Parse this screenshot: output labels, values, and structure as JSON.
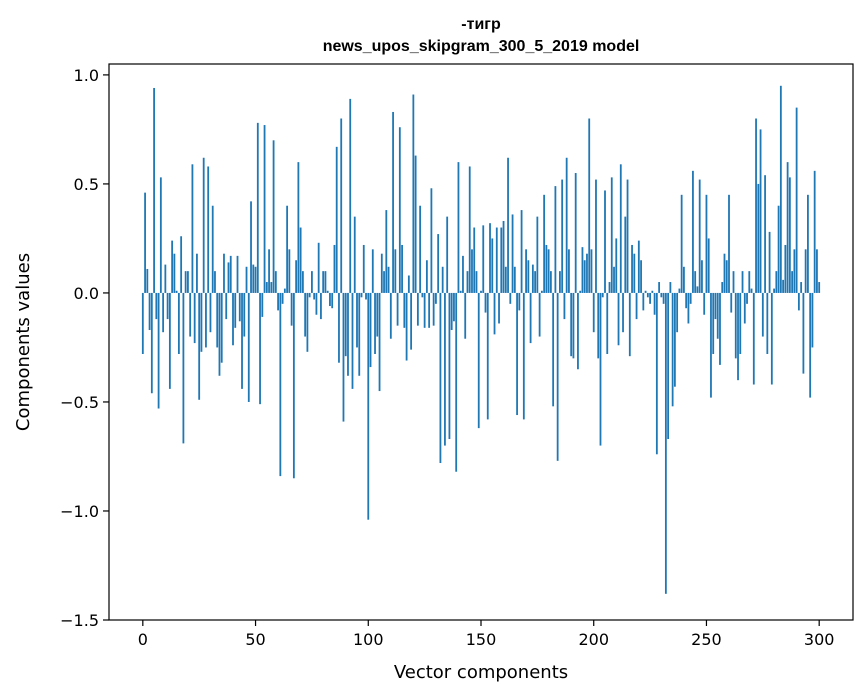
{
  "chart_data": {
    "type": "bar",
    "title": "-тигр",
    "subtitle": "news_upos_skipgram_300_5_2019 model",
    "xlabel": "Vector components",
    "ylabel": "Components values",
    "xlim": [
      -15,
      315
    ],
    "ylim": [
      -1.5,
      1.05
    ],
    "xticks": [
      0,
      50,
      100,
      150,
      200,
      250,
      300
    ],
    "yticks": [
      -1.5,
      -1.0,
      -0.5,
      0.0,
      0.5,
      1.0
    ],
    "xtick_labels": [
      "0",
      "50",
      "100",
      "150",
      "200",
      "250",
      "300"
    ],
    "ytick_labels": [
      "−1.5",
      "−1.0",
      "−0.5",
      "0.0",
      "0.5",
      "1.0"
    ],
    "grid": false,
    "bar_color": "#1f77b4",
    "series": [
      {
        "values": [
          -0.28,
          0.46,
          0.11,
          -0.17,
          -0.46,
          0.94,
          -0.12,
          -0.53,
          0.53,
          -0.18,
          0.13,
          -0.12,
          -0.44,
          0.24,
          0.18,
          0.01,
          -0.28,
          0.26,
          -0.69,
          0.1,
          0.1,
          -0.2,
          0.59,
          -0.23,
          0.18,
          -0.49,
          -0.27,
          0.62,
          -0.25,
          0.58,
          -0.18,
          0.4,
          0.1,
          -0.25,
          -0.38,
          -0.32,
          0.18,
          -0.12,
          0.14,
          0.17,
          -0.24,
          -0.16,
          0.17,
          -0.13,
          -0.44,
          -0.2,
          0.12,
          -0.5,
          0.42,
          0.13,
          0.12,
          0.78,
          -0.51,
          -0.11,
          0.77,
          0.05,
          0.2,
          0.05,
          0.7,
          0.1,
          -0.08,
          -0.84,
          -0.05,
          0.02,
          0.4,
          0.2,
          -0.15,
          -0.85,
          0.15,
          0.6,
          0.3,
          0.1,
          -0.2,
          -0.27,
          -0.02,
          0.1,
          -0.03,
          -0.1,
          0.23,
          -0.12,
          0.1,
          0.1,
          0.01,
          -0.06,
          -0.07,
          0.22,
          0.67,
          -0.32,
          0.8,
          -0.59,
          -0.29,
          -0.38,
          0.89,
          -0.44,
          0.35,
          -0.25,
          -0.38,
          -0.02,
          0.22,
          -0.03,
          -1.04,
          -0.34,
          0.2,
          -0.28,
          -0.2,
          -0.45,
          0.18,
          0.1,
          0.38,
          0.12,
          -0.21,
          0.83,
          0.2,
          -0.15,
          0.76,
          0.22,
          -0.16,
          -0.31,
          0.08,
          -0.26,
          0.91,
          0.63,
          -0.15,
          0.4,
          -0.02,
          -0.16,
          0.15,
          -0.16,
          0.48,
          -0.15,
          -0.05,
          0.27,
          -0.78,
          0.12,
          -0.7,
          0.35,
          -0.67,
          -0.17,
          -0.13,
          -0.82,
          0.6,
          0.01,
          0.17,
          -0.21,
          0.1,
          0.58,
          0.2,
          0.3,
          0.1,
          -0.62,
          0.01,
          0.31,
          -0.09,
          -0.58,
          0.32,
          0.25,
          -0.19,
          0.3,
          -0.14,
          0.3,
          0.33,
          0.12,
          0.62,
          -0.05,
          0.36,
          0.12,
          -0.56,
          -0.08,
          0.38,
          -0.58,
          0.2,
          0.15,
          -0.23,
          0.13,
          0.1,
          0.35,
          -0.2,
          0.01,
          0.45,
          0.22,
          0.2,
          0.1,
          -0.52,
          0.49,
          -0.77,
          0.1,
          0.52,
          -0.12,
          0.62,
          0.2,
          -0.29,
          -0.3,
          0.55,
          -0.35,
          0.01,
          0.21,
          0.15,
          0.18,
          0.8,
          0.2,
          -0.18,
          0.52,
          -0.3,
          -0.7,
          -0.02,
          0.47,
          -0.28,
          0.05,
          0.53,
          0.12,
          0.25,
          -0.24,
          0.59,
          -0.18,
          0.35,
          0.52,
          -0.29,
          0.22,
          0.18,
          -0.12,
          0.24,
          0.15,
          -0.08,
          0.01,
          -0.02,
          -0.05,
          0.01,
          -0.1,
          -0.74,
          0.05,
          -0.02,
          -0.05,
          -1.38,
          -0.67,
          0.05,
          -0.52,
          -0.43,
          -0.18,
          0.02,
          0.45,
          0.12,
          -0.07,
          -0.14,
          -0.05,
          0.56,
          0.1,
          0.03,
          0.52,
          0.15,
          -0.1,
          0.45,
          0.25,
          -0.48,
          -0.28,
          -0.12,
          -0.21,
          -0.33,
          0.05,
          0.18,
          0.15,
          0.45,
          -0.09,
          0.1,
          -0.3,
          -0.4,
          -0.28,
          0.1,
          -0.14,
          -0.05,
          0.1,
          0.02,
          -0.42,
          0.8,
          0.5,
          0.75,
          -0.2,
          0.54,
          -0.28,
          0.28,
          -0.42,
          0.02,
          0.1,
          0.4,
          0.95,
          0.06,
          0.22,
          0.6,
          0.53,
          0.1,
          0.2,
          0.85,
          -0.08,
          0.05,
          -0.37,
          0.2,
          0.45,
          -0.48,
          -0.25,
          0.56,
          0.2,
          0.05
        ]
      }
    ]
  }
}
